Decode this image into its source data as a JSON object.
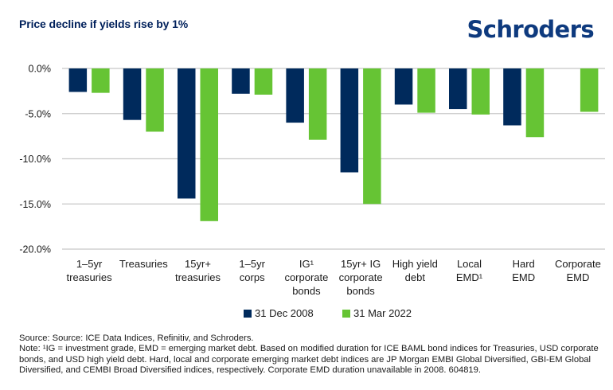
{
  "header": {
    "title": "Price decline if yields rise by 1%",
    "logo": "Schroders"
  },
  "chart_data": {
    "type": "bar",
    "title": "Price decline if yields rise by 1%",
    "xlabel": "",
    "ylabel": "",
    "ylim": [
      -20,
      0
    ],
    "yticks": [
      0,
      -5,
      -10,
      -15,
      -20
    ],
    "ytick_labels": [
      "0.0%",
      "-5.0%",
      "-10.0%",
      "-15.0%",
      "-20.0%"
    ],
    "grid": true,
    "legend_position": "bottom",
    "categories": [
      [
        "1–5yr",
        "treasuries"
      ],
      [
        "Treasuries"
      ],
      [
        "15yr+",
        "treasuries"
      ],
      [
        "1–5yr",
        "corps"
      ],
      [
        "IG¹",
        "corporate",
        "bonds"
      ],
      [
        "15yr+ IG",
        "corporate",
        "bonds"
      ],
      [
        "High yield",
        "debt"
      ],
      [
        "Local",
        "EMD¹"
      ],
      [
        "Hard",
        "EMD"
      ],
      [
        "Corporate",
        "EMD"
      ]
    ],
    "series": [
      {
        "name": "31 Dec 2008",
        "color": "#002a5c",
        "values": [
          -2.6,
          -5.7,
          -14.4,
          -2.8,
          -6.0,
          -11.5,
          -4.0,
          -4.5,
          -6.3,
          null
        ]
      },
      {
        "name": "31 Mar 2022",
        "color": "#66c434",
        "values": [
          -2.7,
          -7.0,
          -16.9,
          -2.9,
          -7.9,
          -15.0,
          -4.9,
          -5.1,
          -7.6,
          -4.8
        ]
      }
    ]
  },
  "legend": {
    "items": [
      {
        "label": "31 Dec 2008",
        "color": "#002a5c"
      },
      {
        "label": "31 Mar 2022",
        "color": "#66c434"
      }
    ]
  },
  "footer": {
    "source": "Source: Source: ICE Data Indices, Refinitiv, and Schroders.",
    "note": "Note: ¹IG = investment grade, EMD = emerging market debt. Based on modified duration for ICE BAML bond indices for Treasuries, USD corporate bonds, and USD high yield debt. Hard, local and corporate emerging market debt indices are JP Morgan EMBI Global Diversified, GBI-EM Global Diversified, and CEMBI Broad Diversified indices, respectively. Corporate EMD duration unavailable in 2008. 604819."
  },
  "colors": {
    "title": "#00205b",
    "logo": "#0e3a7e",
    "gridline": "#c8c8c8"
  }
}
